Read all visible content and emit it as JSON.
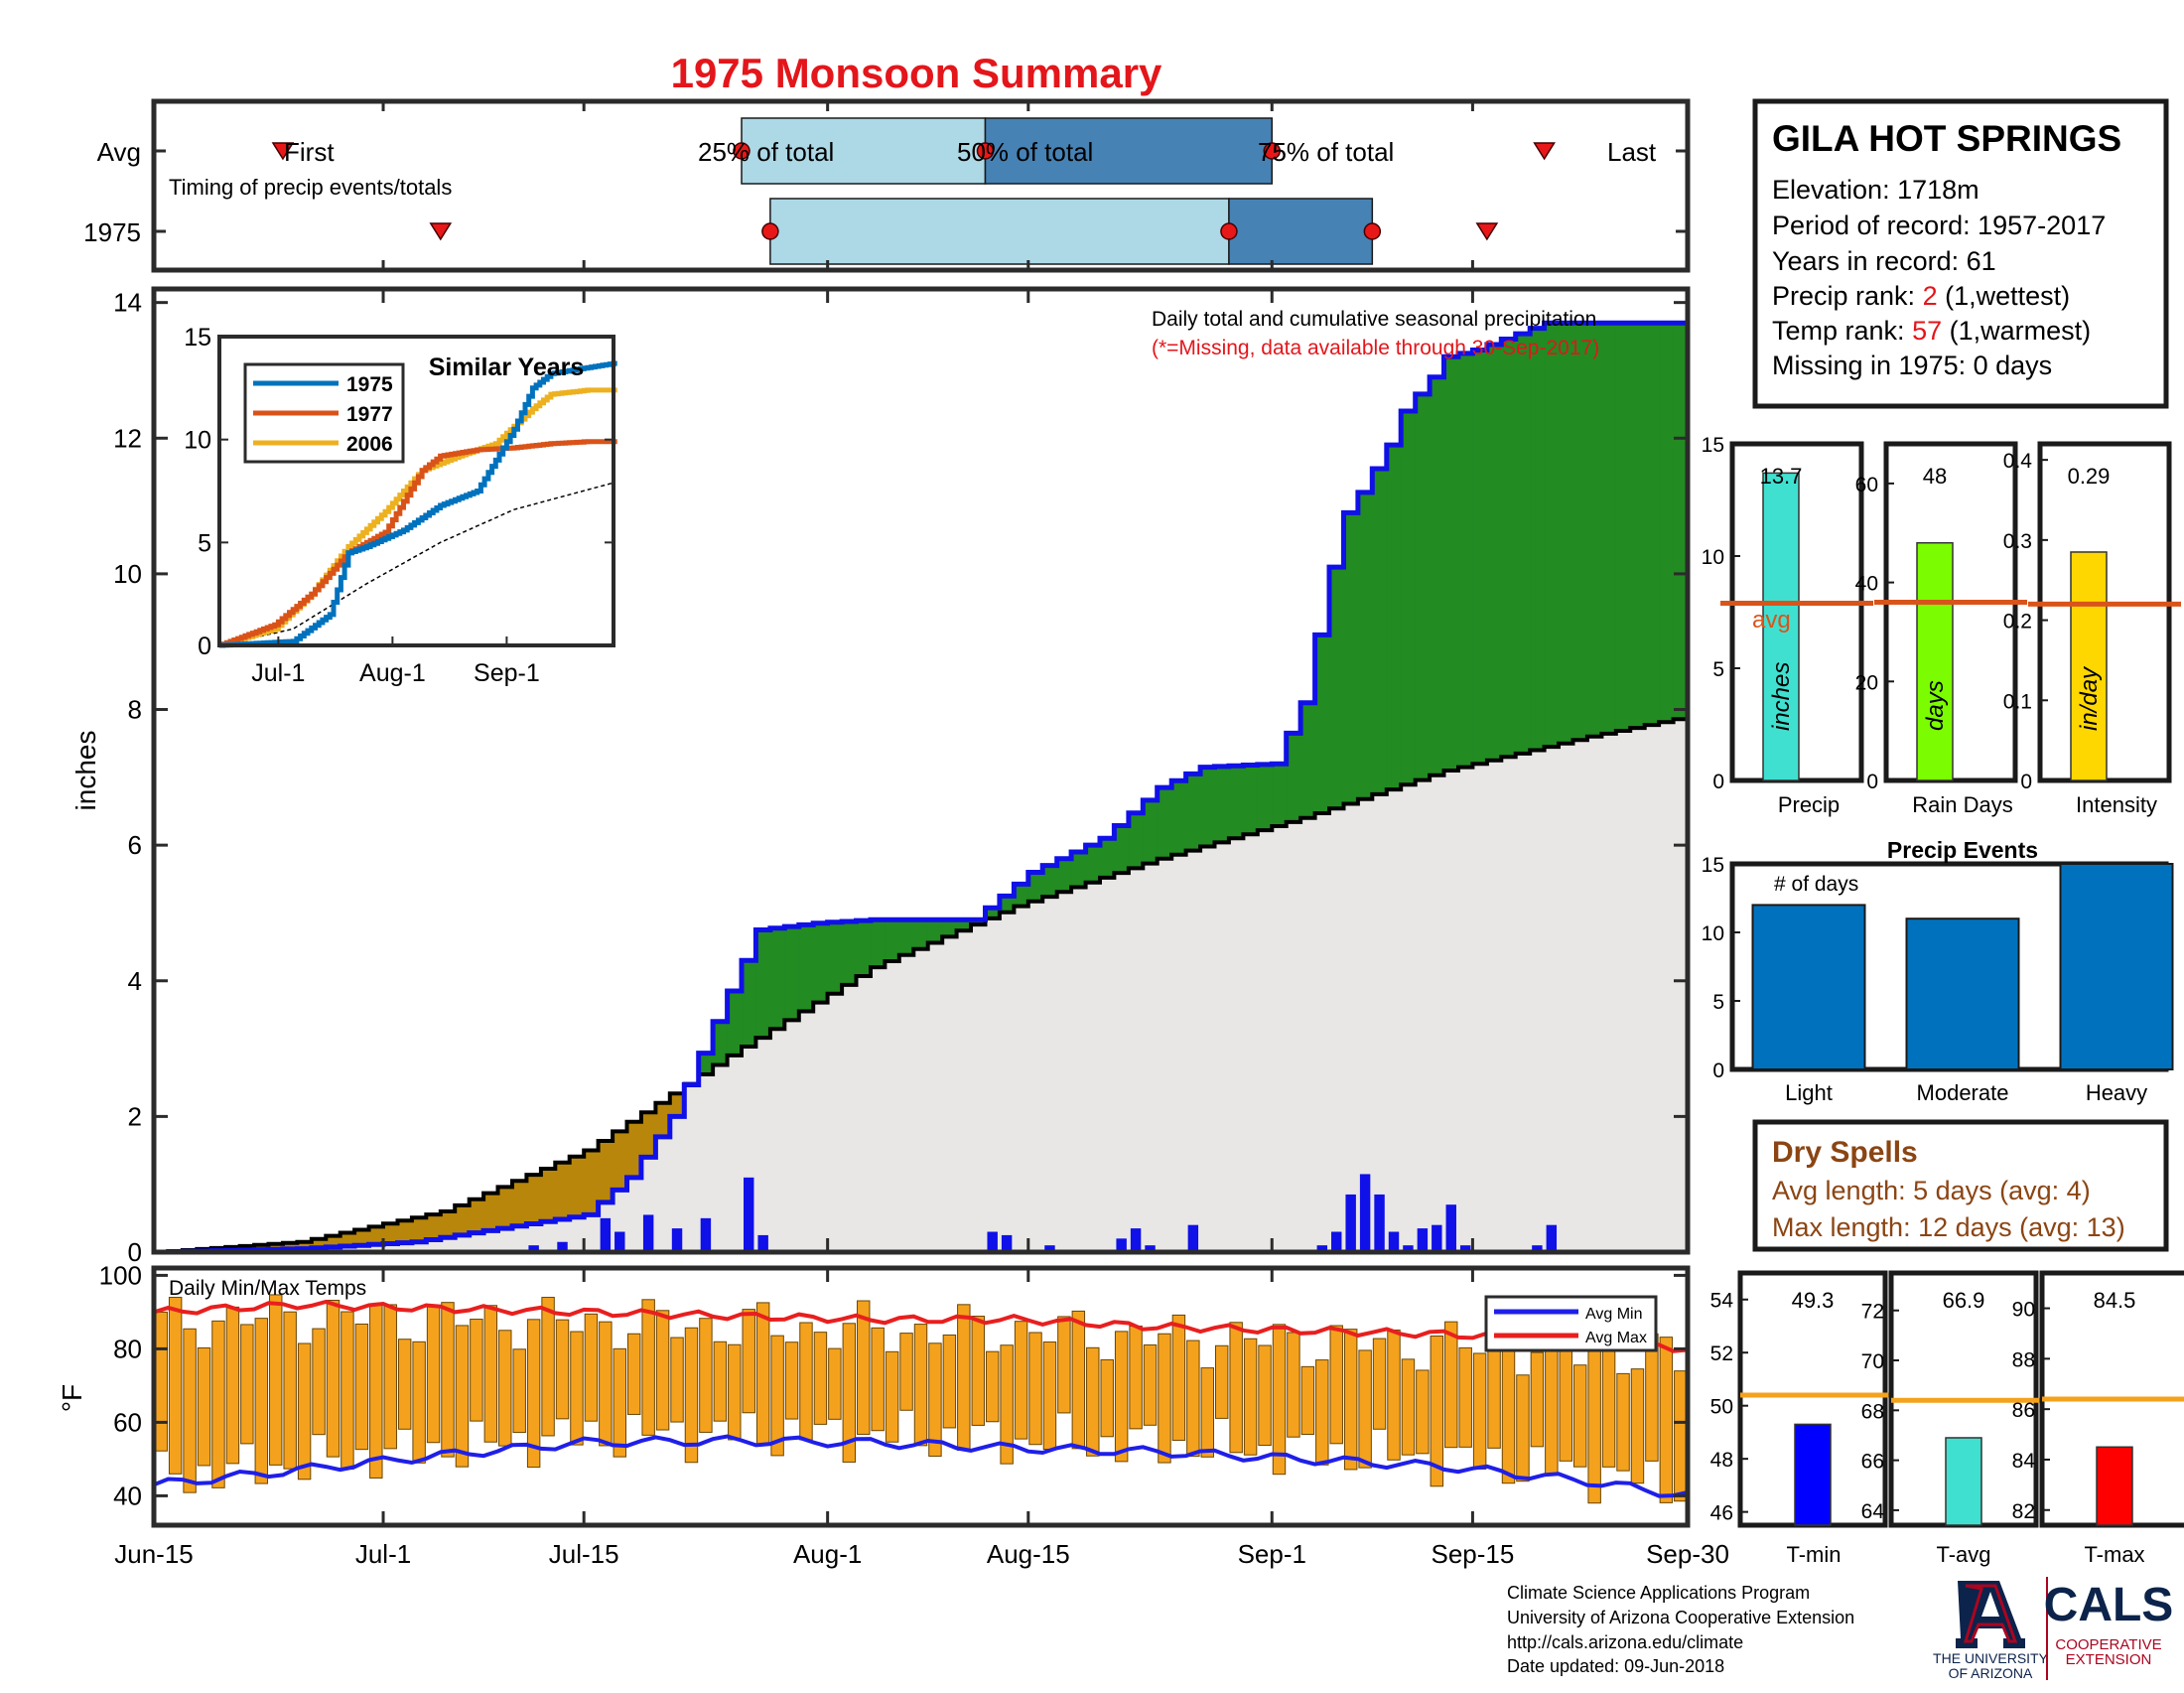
{
  "title": "1975 Monsoon Summary",
  "colors": {
    "title": "#e3161b",
    "frame": "#2b2b2b",
    "light_blue": "#add8e6",
    "mid_blue": "#4682b4",
    "green": "#228b22",
    "brown": "#b8860b",
    "grey": "#e8e7e6",
    "cum_line": "#1010e8",
    "daily_bar": "#1010e8",
    "temp_bar": "#f4a21d",
    "avg_min": "#1f1fe8",
    "avg_max": "#e81f1f",
    "precip_bar": "#40e0d0",
    "rain_bar": "#7cfc00",
    "intensity_bar": "#ffd700",
    "avg_line": "#d9541a",
    "event_bar": "#0072bd",
    "temp_avg_line": "#f4a21d",
    "tmin_bar": "#0000ff",
    "tavg_bar": "#40e0d0",
    "tmax_bar": "#ff0000",
    "red_text": "#e3161b",
    "dry_text": "#8b4513",
    "logo_blue": "#0c234b",
    "logo_red": "#ab0520",
    "y1975": "#0072bd",
    "y1977": "#d95319",
    "y2006": "#edb120"
  },
  "timing": {
    "rows": [
      "Avg",
      "1975"
    ],
    "caption": "Timing of precip events/totals",
    "labels": {
      "first": "First",
      "p25": "25% of total",
      "p50": "50% of total",
      "p75": "75% of total",
      "last": "Last"
    },
    "avg_days": {
      "first": 9,
      "p25": 41,
      "p50": 58,
      "p75": 78,
      "last": 97
    },
    "year_days": {
      "first": 20,
      "p25": 43,
      "p50": 75,
      "p75": 85,
      "last": 93
    }
  },
  "station": {
    "name": "GILA HOT SPRINGS",
    "elevation": "Elevation: 1718m",
    "period": "Period of record: 1957-2017",
    "years": "Years in record: 61",
    "precip_rank_label": "Precip rank: ",
    "precip_rank_value": "2",
    "precip_rank_note": " (1,wettest)",
    "temp_rank_label": "Temp rank: ",
    "temp_rank_value": "57",
    "temp_rank_note": " (1,warmest)",
    "missing": "Missing in 1975: 0 days"
  },
  "main": {
    "ylabel": "inches",
    "note1": "Daily total and cumulative seasonal precipitation",
    "note2": "(*=Missing, data available through 30-Sep-2017)",
    "x_ticks": [
      "Jun-15",
      "Jul-1",
      "Jul-15",
      "Aug-1",
      "Aug-15",
      "Sep-1",
      "Sep-15",
      "Sep-30"
    ],
    "x_tick_days": [
      0,
      16,
      30,
      47,
      61,
      78,
      92,
      107
    ],
    "y_ticks": [
      "0",
      "2",
      "4",
      "6",
      "8",
      "10",
      "12",
      "14"
    ]
  },
  "inset": {
    "title": "Similar Years",
    "legend": [
      "1975",
      "1977",
      "2006"
    ],
    "x_ticks": [
      "Jul-1",
      "Aug-1",
      "Sep-1"
    ],
    "y_ticks": [
      "0",
      "5",
      "10",
      "15"
    ]
  },
  "temps": {
    "label": "Daily Min/Max Temps",
    "ylabel": "°F",
    "y_ticks": [
      "40",
      "60",
      "80",
      "100"
    ],
    "legend": [
      "Avg Min",
      "Avg Max"
    ]
  },
  "summary_bars": [
    {
      "name": "Precip",
      "value": 13.7,
      "value_label": "13.7",
      "avg": 7.9,
      "unit": "inches",
      "y_ticks": [
        "0",
        "5",
        "10",
        "15"
      ],
      "ymax": 15,
      "avg_label": "avg"
    },
    {
      "name": "Rain Days",
      "value": 48,
      "value_label": "48",
      "avg": 36,
      "unit": "days",
      "y_ticks": [
        "0",
        "20",
        "40",
        "60"
      ],
      "ymax": 68
    },
    {
      "name": "Intensity",
      "value": 0.285,
      "value_label": "0.29",
      "avg": 0.22,
      "unit": "in/day",
      "y_ticks": [
        "0",
        "0.1",
        "0.2",
        "0.3",
        "0.4"
      ],
      "ymax": 0.42
    }
  ],
  "events": {
    "title": "Precip Events",
    "sublabel": "# of days",
    "categories": [
      "Light",
      "Moderate",
      "Heavy"
    ],
    "values": [
      12,
      11,
      15
    ],
    "y_ticks": [
      "0",
      "5",
      "10",
      "15"
    ]
  },
  "dry": {
    "title": "Dry Spells",
    "avg": "Avg length: 5 days (avg: 4)",
    "max": "Max length: 12 days (avg: 13)"
  },
  "temp_bars": [
    {
      "name": "T-min",
      "value": 49.3,
      "value_label": "49.3",
      "avg": 50.4,
      "ymin": 45.5,
      "ymax": 55,
      "y_ticks": [
        "46",
        "48",
        "50",
        "52",
        "54"
      ],
      "tick_vals": [
        46,
        48,
        50,
        52,
        54
      ]
    },
    {
      "name": "T-avg",
      "value": 66.9,
      "value_label": "66.9",
      "avg": 68.4,
      "ymin": 63.4,
      "ymax": 73.5,
      "y_ticks": [
        "64",
        "66",
        "68",
        "70",
        "72"
      ],
      "tick_vals": [
        64,
        66,
        68,
        70,
        72
      ]
    },
    {
      "name": "T-max",
      "value": 84.5,
      "value_label": "84.5",
      "avg": 86.4,
      "ymin": 81.4,
      "ymax": 91.4,
      "y_ticks": [
        "82",
        "84",
        "86",
        "88",
        "90"
      ],
      "tick_vals": [
        82,
        84,
        86,
        88,
        90
      ]
    }
  ],
  "footer": {
    "line1": "Climate Science Applications Program",
    "line2": "University of Arizona Cooperative Extension",
    "line3": "http://cals.arizona.edu/climate",
    "line4": " Date updated: 09-Jun-2018"
  },
  "logos": {
    "ua_line1": "THE UNIVERSITY",
    "ua_line2": "OF ARIZONA",
    "cals": "CALS",
    "cals_line1": "COOPERATIVE",
    "cals_line2": "EXTENSION"
  },
  "chart_data": {
    "type": "area",
    "title": "1975 Monsoon Summary",
    "ylabel": "inches",
    "ylim": [
      0,
      14.2
    ],
    "x_range_days": [
      0,
      107
    ],
    "cumulative_1975": {
      "days": [
        0,
        10,
        18,
        24,
        30,
        33,
        36,
        39,
        42,
        46,
        50,
        57,
        61,
        66,
        70,
        73,
        78,
        80,
        82,
        83,
        84,
        86,
        87,
        89,
        90,
        92,
        97,
        107
      ],
      "values": [
        0,
        0.05,
        0.15,
        0.35,
        0.55,
        1.1,
        2.0,
        3.4,
        4.75,
        4.85,
        4.9,
        4.9,
        5.6,
        6.1,
        6.85,
        7.15,
        7.2,
        8.1,
        10.1,
        10.9,
        11.2,
        11.9,
        12.4,
        12.9,
        13.2,
        13.3,
        13.7,
        13.7
      ]
    },
    "cumulative_avg": {
      "days": [
        0,
        10,
        20,
        30,
        40,
        50,
        60,
        70,
        80,
        90,
        100,
        107
      ],
      "values": [
        0,
        0.15,
        0.6,
        1.5,
        2.9,
        4.2,
        5.1,
        5.8,
        6.4,
        7.1,
        7.6,
        7.9
      ]
    },
    "daily_1975": {
      "days": [
        26,
        28,
        31,
        32,
        34,
        36,
        38,
        41,
        42,
        58,
        59,
        62,
        67,
        68,
        69,
        72,
        81,
        82,
        83,
        84,
        85,
        86,
        87,
        88,
        89,
        90,
        91,
        96,
        97
      ],
      "values": [
        0.1,
        0.15,
        0.5,
        0.3,
        0.55,
        0.35,
        0.5,
        1.1,
        0.25,
        0.3,
        0.25,
        0.1,
        0.2,
        0.35,
        0.1,
        0.4,
        0.1,
        0.3,
        0.85,
        1.15,
        0.85,
        0.3,
        0.1,
        0.35,
        0.4,
        0.7,
        0.1,
        0.1,
        0.4
      ]
    },
    "temp_avg_min": {
      "days": [
        0,
        10,
        20,
        30,
        40,
        50,
        60,
        70,
        80,
        90,
        100,
        107
      ],
      "values": [
        43,
        47,
        51,
        54.5,
        55,
        54.5,
        53,
        52,
        50,
        48,
        44,
        40
      ]
    },
    "temp_avg_max": {
      "days": [
        0,
        10,
        20,
        30,
        40,
        50,
        60,
        70,
        80,
        90,
        100,
        107
      ],
      "values": [
        90,
        92,
        91,
        90,
        89,
        88,
        88,
        86,
        85,
        84,
        82,
        80
      ]
    },
    "similar_years": {
      "1975": {
        "days": [
          0,
          20,
          30,
          35,
          40,
          50,
          60,
          70,
          80,
          85,
          90,
          107
        ],
        "values": [
          0,
          0.2,
          1.5,
          4.5,
          4.8,
          5.6,
          6.8,
          7.5,
          10.5,
          12.5,
          13.2,
          13.7
        ]
      },
      "1977": {
        "days": [
          0,
          15,
          25,
          35,
          45,
          55,
          60,
          70,
          80,
          90,
          100,
          107
        ],
        "values": [
          0,
          1,
          2.5,
          4.5,
          5.5,
          8.5,
          9.2,
          9.5,
          9.6,
          9.8,
          9.9,
          9.9
        ]
      },
      "2006": {
        "days": [
          0,
          15,
          25,
          35,
          45,
          55,
          65,
          75,
          85,
          90,
          100,
          107
        ],
        "values": [
          0,
          0.8,
          2.5,
          4.8,
          6.5,
          8.5,
          9.2,
          9.8,
          11.5,
          12.2,
          12.4,
          12.4
        ]
      }
    },
    "inset_avg": {
      "days": [
        0,
        20,
        40,
        60,
        80,
        107
      ],
      "values": [
        0,
        0.8,
        3.0,
        5.0,
        6.6,
        7.9
      ]
    }
  }
}
